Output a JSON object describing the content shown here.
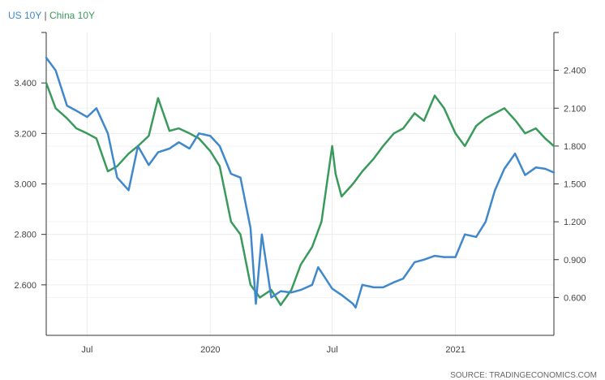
{
  "chart_data": {
    "type": "line",
    "title": "",
    "legend_placement": "top-left",
    "grid": true,
    "source": "SOURCE: TRADINGECONOMICS.COM",
    "x_tick_labels": [
      "Jul",
      "2020",
      "Jul",
      "2021"
    ],
    "y_left": {
      "ticks": [
        "2.600",
        "2.800",
        "3.000",
        "3.200",
        "3.400"
      ],
      "range": [
        2.4,
        3.6
      ]
    },
    "y_right": {
      "ticks": [
        "0.600",
        "0.900",
        "1.200",
        "1.500",
        "1.800",
        "2.100",
        "2.400"
      ],
      "range": [
        0.3,
        2.7
      ]
    },
    "series": [
      {
        "name": "US 10Y",
        "axis": "right",
        "color": "#3f88cc",
        "x": [
          "2019-05-01",
          "2019-05-15",
          "2019-06-01",
          "2019-06-15",
          "2019-07-01",
          "2019-07-15",
          "2019-08-01",
          "2019-08-15",
          "2019-09-01",
          "2019-09-15",
          "2019-10-01",
          "2019-10-15",
          "2019-11-01",
          "2019-11-15",
          "2019-12-01",
          "2019-12-15",
          "2020-01-01",
          "2020-01-15",
          "2020-02-01",
          "2020-02-15",
          "2020-03-01",
          "2020-03-09",
          "2020-03-18",
          "2020-04-01",
          "2020-04-15",
          "2020-05-01",
          "2020-05-15",
          "2020-06-01",
          "2020-06-10",
          "2020-07-01",
          "2020-07-15",
          "2020-08-01",
          "2020-08-05",
          "2020-08-15",
          "2020-09-01",
          "2020-09-15",
          "2020-10-01",
          "2020-10-15",
          "2020-11-01",
          "2020-11-15",
          "2020-12-01",
          "2020-12-15",
          "2021-01-01",
          "2021-01-15",
          "2021-02-01",
          "2021-02-15",
          "2021-03-01",
          "2021-03-15",
          "2021-03-31",
          "2021-04-15",
          "2021-05-01",
          "2021-05-15",
          "2021-05-28"
        ],
        "y": [
          2.5,
          2.4,
          2.12,
          2.08,
          2.03,
          2.1,
          1.9,
          1.55,
          1.45,
          1.8,
          1.65,
          1.75,
          1.78,
          1.83,
          1.78,
          1.9,
          1.88,
          1.8,
          1.58,
          1.55,
          1.15,
          0.55,
          1.1,
          0.6,
          0.65,
          0.64,
          0.66,
          0.7,
          0.84,
          0.67,
          0.62,
          0.55,
          0.52,
          0.7,
          0.68,
          0.68,
          0.72,
          0.75,
          0.88,
          0.9,
          0.93,
          0.92,
          0.92,
          1.1,
          1.08,
          1.2,
          1.45,
          1.62,
          1.74,
          1.57,
          1.63,
          1.62,
          1.59
        ]
      },
      {
        "name": "China 10Y",
        "axis": "left",
        "color": "#3a9a5c",
        "x": [
          "2019-05-01",
          "2019-05-15",
          "2019-06-01",
          "2019-06-15",
          "2019-07-01",
          "2019-07-15",
          "2019-08-01",
          "2019-08-15",
          "2019-09-01",
          "2019-09-15",
          "2019-10-01",
          "2019-10-15",
          "2019-11-01",
          "2019-11-15",
          "2019-12-01",
          "2019-12-15",
          "2020-01-01",
          "2020-01-15",
          "2020-02-01",
          "2020-02-15",
          "2020-03-01",
          "2020-03-15",
          "2020-04-01",
          "2020-04-15",
          "2020-05-01",
          "2020-05-15",
          "2020-06-01",
          "2020-06-15",
          "2020-07-01",
          "2020-07-06",
          "2020-07-15",
          "2020-08-01",
          "2020-08-15",
          "2020-09-01",
          "2020-09-15",
          "2020-10-01",
          "2020-10-15",
          "2020-11-01",
          "2020-11-15",
          "2020-12-01",
          "2020-12-15",
          "2021-01-01",
          "2021-01-15",
          "2021-02-01",
          "2021-02-15",
          "2021-03-01",
          "2021-03-15",
          "2021-04-01",
          "2021-04-15",
          "2021-05-01",
          "2021-05-15",
          "2021-05-28"
        ],
        "y": [
          3.4,
          3.3,
          3.26,
          3.22,
          3.2,
          3.18,
          3.05,
          3.07,
          3.12,
          3.15,
          3.19,
          3.34,
          3.21,
          3.22,
          3.2,
          3.18,
          3.13,
          3.07,
          2.85,
          2.8,
          2.6,
          2.55,
          2.58,
          2.52,
          2.58,
          2.68,
          2.75,
          2.85,
          3.15,
          3.04,
          2.95,
          3.0,
          3.05,
          3.1,
          3.15,
          3.2,
          3.22,
          3.28,
          3.25,
          3.35,
          3.3,
          3.2,
          3.15,
          3.23,
          3.26,
          3.28,
          3.3,
          3.25,
          3.2,
          3.22,
          3.18,
          3.15
        ]
      }
    ]
  }
}
